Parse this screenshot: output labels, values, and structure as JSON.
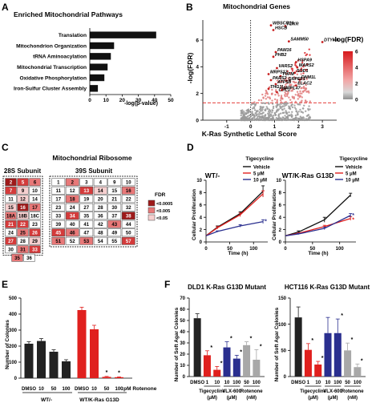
{
  "panel_labels": {
    "a": "A",
    "b": "B",
    "c": "C",
    "d": "D",
    "e": "E",
    "f": "F"
  },
  "colors": {
    "black": "#222222",
    "red": "#e0201e",
    "dark_red": "#9e1a1a",
    "blue": "#2a2f8f",
    "gray": "#a8a8a8",
    "light_red": "#f6cfcf",
    "mid_red": "#e87878"
  },
  "ribosome_table": {
    "title": "Mitochondrial Ribosome",
    "sub28_title": "28S Subunit",
    "sub39_title": "39S Subunit",
    "legend_title": "FDR",
    "legend_labels": [
      "<0.0005",
      "<0.005",
      "<0.05"
    ],
    "sub28_rows": [
      [
        "2",
        "5",
        "6"
      ],
      [
        "7",
        "9",
        "10"
      ],
      [
        "11",
        "12",
        "14"
      ],
      [
        "15",
        "16",
        "17"
      ],
      [
        "18A",
        "18B",
        "18C"
      ],
      [
        "21",
        "22",
        "23"
      ],
      [
        "24",
        "25",
        "26"
      ],
      [
        "27",
        "28",
        "29"
      ],
      [
        "30",
        "31",
        "33"
      ],
      [
        "35",
        "36"
      ]
    ],
    "sub28_shades": [
      [
        "d",
        "r",
        "m"
      ],
      [
        "r",
        "l",
        "w"
      ],
      [
        "w",
        "l",
        "w"
      ],
      [
        "l",
        "d",
        "m"
      ],
      [
        "m",
        "l",
        "w"
      ],
      [
        "r",
        "r",
        "w"
      ],
      [
        "w",
        "m",
        "r"
      ],
      [
        "r",
        "w",
        "l"
      ],
      [
        "w",
        "m",
        "r"
      ],
      [
        "m",
        "w"
      ]
    ],
    "sub39_rows": [
      [
        "1",
        "2",
        "3",
        "4",
        "9",
        "10"
      ],
      [
        "11",
        "12",
        "13",
        "14",
        "15",
        "16"
      ],
      [
        "17",
        "18",
        "19",
        "20",
        "21",
        "22"
      ],
      [
        "23",
        "24",
        "27",
        "28",
        "30",
        "32"
      ],
      [
        "33",
        "34",
        "35",
        "36",
        "37",
        "38"
      ],
      [
        "39",
        "40",
        "41",
        "42",
        "43",
        "44"
      ],
      [
        "45",
        "46",
        "47",
        "48",
        "49",
        "50"
      ],
      [
        "51",
        "52",
        "53",
        "54",
        "55",
        "57"
      ]
    ],
    "sub39_shades": [
      [
        "w",
        "m",
        "w",
        "w",
        "w",
        "w"
      ],
      [
        "w",
        "w",
        "r",
        "l",
        "w",
        "m"
      ],
      [
        "w",
        "m",
        "w",
        "w",
        "w",
        "w"
      ],
      [
        "w",
        "w",
        "w",
        "w",
        "w",
        "w"
      ],
      [
        "w",
        "r",
        "w",
        "w",
        "w",
        "d"
      ],
      [
        "w",
        "w",
        "w",
        "w",
        "m",
        "w"
      ],
      [
        "r",
        "m",
        "w",
        "w",
        "w",
        "w"
      ],
      [
        "m",
        "w",
        "m",
        "w",
        "w",
        "r"
      ]
    ]
  },
  "chart_data": [
    {
      "type": "bar",
      "orientation": "horizontal",
      "panel": "A",
      "title": "Enriched Mitochondrial Pathways",
      "categories": [
        "Translation",
        "Mitochondrion Organization",
        "tRNA Aminoacylation",
        "Mitochondrial Transcription",
        "Oxidative Phosphorylation",
        "Iron-Sulfur Cluster Assembly"
      ],
      "values": [
        41,
        15,
        13,
        11,
        9,
        5
      ],
      "xlabel": "-log(p-value)",
      "xlim": [
        0,
        50
      ],
      "ticks": [
        "0",
        "10",
        "20",
        "30",
        "40",
        "50"
      ],
      "color": "#111111"
    },
    {
      "type": "scatter",
      "panel": "B",
      "title": "Mitochondrial Genes",
      "xlabel": "K-Ras Synthetic Lethal Score",
      "ylabel": "-log(FDR)",
      "colorbar_title": "-log(FDR)",
      "colorbar_ticks": [
        "6",
        "4",
        "2",
        "0"
      ],
      "xlim": [
        -2,
        3.6
      ],
      "ylim": [
        0,
        7.5
      ],
      "xticks": [
        "-1",
        "0",
        "1",
        "2",
        "3"
      ],
      "yticks": [
        "0",
        "2",
        "4",
        "6"
      ],
      "threshold_y": 1.3,
      "labeled_points": [
        {
          "label": "WBSCR16",
          "x": 0.85,
          "y": 7.1
        },
        {
          "label": "FDXR",
          "x": 1.45,
          "y": 7.05
        },
        {
          "label": "HSCB",
          "x": 0.95,
          "y": 6.75
        },
        {
          "label": "SAMM50",
          "x": 1.6,
          "y": 5.9
        },
        {
          "label": "DTYMK",
          "x": 3.0,
          "y": 5.85
        },
        {
          "label": "PAM16",
          "x": 1.05,
          "y": 5.1
        },
        {
          "label": "PHB2",
          "x": 0.95,
          "y": 4.75
        },
        {
          "label": "HSPA9",
          "x": 1.9,
          "y": 4.35
        },
        {
          "label": "MARS2",
          "x": 1.95,
          "y": 3.95
        },
        {
          "label": "VARS2",
          "x": 1.1,
          "y": 3.9
        },
        {
          "label": "SOD1",
          "x": 1.85,
          "y": 3.55
        },
        {
          "label": "MRPS12",
          "x": 0.75,
          "y": 3.45
        },
        {
          "label": "TUFM",
          "x": 1.25,
          "y": 3.3
        },
        {
          "label": "DNM1L",
          "x": 2.05,
          "y": 3.05
        },
        {
          "label": "PARS2",
          "x": 0.85,
          "y": 3.0
        },
        {
          "label": "GRPEL1",
          "x": 1.5,
          "y": 2.95
        },
        {
          "label": "ATP5B",
          "x": 1.05,
          "y": 2.7
        },
        {
          "label": "ELAC2",
          "x": 1.9,
          "y": 2.6
        },
        {
          "label": "THG1L",
          "x": 0.75,
          "y": 2.35
        },
        {
          "label": "MRPL47",
          "x": 1.3,
          "y": 2.25
        },
        {
          "label": "CYC1",
          "x": 1.1,
          "y": 2.1
        }
      ],
      "point_count_estimate": 650
    },
    {
      "type": "line",
      "panel": "D",
      "title": "WT/-",
      "legend_title": "Tigecycline",
      "xlabel": "Time (h)",
      "ylabel": "Cellular Proliferation",
      "x": [
        0,
        24,
        72,
        120
      ],
      "xlim": [
        0,
        130
      ],
      "ylim": [
        0,
        10
      ],
      "xticks": [
        "0",
        "50",
        "100"
      ],
      "yticks": [
        "0",
        "2",
        "4",
        "6",
        "8",
        "10"
      ],
      "series": [
        {
          "name": "Vehicle",
          "color": "#111111",
          "values": [
            1,
            2.4,
            4.6,
            8.2
          ],
          "err": [
            0,
            0.2,
            0.3,
            0.9
          ]
        },
        {
          "name": "5 μM",
          "color": "#e0201e",
          "values": [
            1,
            2.3,
            4.4,
            7.8
          ],
          "err": [
            0,
            0.2,
            0.3,
            0.5
          ]
        },
        {
          "name": "10 μM",
          "color": "#2a2f8f",
          "values": [
            1,
            1.7,
            2.6,
            3.3
          ],
          "err": [
            0,
            0.1,
            0.2,
            0.3
          ]
        }
      ]
    },
    {
      "type": "line",
      "panel": "D",
      "title": "WT/K-Ras G13D",
      "legend_title": "Tigecycline",
      "xlabel": "Time (h)",
      "ylabel": "Cellular Proliferation",
      "x": [
        0,
        24,
        72,
        120
      ],
      "xlim": [
        0,
        130
      ],
      "ylim": [
        0,
        10
      ],
      "xticks": [
        "0",
        "50",
        "100"
      ],
      "yticks": [
        "0",
        "2",
        "4",
        "6",
        "8",
        "10"
      ],
      "series": [
        {
          "name": "Vehicle",
          "color": "#111111",
          "values": [
            1,
            1.6,
            3.6,
            7.6
          ],
          "err": [
            0,
            0.2,
            0.4,
            0.3
          ]
        },
        {
          "name": "5 μM",
          "color": "#e0201e",
          "values": [
            1,
            1.4,
            2.5,
            3.8
          ],
          "err": [
            0,
            0.1,
            0.2,
            0.3
          ]
        },
        {
          "name": "10 μM",
          "color": "#2a2f8f",
          "values": [
            1,
            1.3,
            2.2,
            4.3
          ],
          "err": [
            0,
            0.1,
            0.2,
            0.3
          ]
        }
      ]
    },
    {
      "type": "bar",
      "panel": "E",
      "ylabel": "Number of Colonies",
      "ylim": [
        0,
        500
      ],
      "yticks": [
        "0",
        "100",
        "200",
        "300",
        "400",
        "500"
      ],
      "categories": [
        "DMSO",
        "10",
        "50",
        "100",
        "DMSO",
        "10",
        "50",
        "100"
      ],
      "unit_label": ":pM Rotenone",
      "groups": [
        "WT/-",
        "WT/K-Ras G13D"
      ],
      "values": [
        215,
        232,
        165,
        105,
        425,
        305,
        8,
        6
      ],
      "err": [
        12,
        15,
        12,
        10,
        18,
        25,
        3,
        2
      ],
      "colors": [
        "#222222",
        "#222222",
        "#222222",
        "#222222",
        "#e0201e",
        "#e0201e",
        "#e0201e",
        "#e0201e"
      ],
      "significance": [
        "",
        "",
        "",
        "",
        "",
        "",
        "*",
        "*"
      ]
    },
    {
      "type": "bar",
      "panel": "F",
      "title": "DLD1 K-Ras G13D Mutant",
      "ylabel": "Number of Soft Agar Colonies",
      "ylim": [
        0,
        70
      ],
      "yticks": [
        "0",
        "10",
        "20",
        "30",
        "40",
        "50",
        "60",
        "70"
      ],
      "categories": [
        "DMSO",
        "1",
        "10",
        "10",
        "100",
        "50",
        "100"
      ],
      "groups": [
        "Tigecycline (μM)",
        "VLX-600 (μM)",
        "Rotenone (nM)"
      ],
      "values": [
        52,
        19,
        6,
        26,
        16,
        28,
        15
      ],
      "err": [
        4,
        4,
        3,
        5,
        3,
        3,
        9
      ],
      "colors": [
        "#222222",
        "#e0201e",
        "#e0201e",
        "#2a2f8f",
        "#2a2f8f",
        "#a8a8a8",
        "#a8a8a8"
      ],
      "significance": [
        "",
        "*",
        "*",
        "*",
        "*",
        "*",
        "*"
      ]
    },
    {
      "type": "bar",
      "panel": "F",
      "title": "HCT116 K-Ras G13D Mutant",
      "ylabel": "Number of Soft Agar Colonies",
      "ylim": [
        0,
        150
      ],
      "yticks": [
        "0",
        "50",
        "100",
        "150"
      ],
      "categories": [
        "DMSO",
        "1",
        "10",
        "10",
        "100",
        "50",
        "100"
      ],
      "groups": [
        "Tigecycline (μM)",
        "VLX-600 (μM)",
        "Rotenone (nM)"
      ],
      "values": [
        113,
        51,
        23,
        83,
        83,
        50,
        18
      ],
      "err": [
        20,
        12,
        6,
        30,
        27,
        14,
        6
      ],
      "colors": [
        "#222222",
        "#e0201e",
        "#e0201e",
        "#2a2f8f",
        "#2a2f8f",
        "#a8a8a8",
        "#a8a8a8"
      ],
      "significance": [
        "",
        "*",
        "*",
        "",
        "*",
        "*",
        "*"
      ]
    }
  ]
}
